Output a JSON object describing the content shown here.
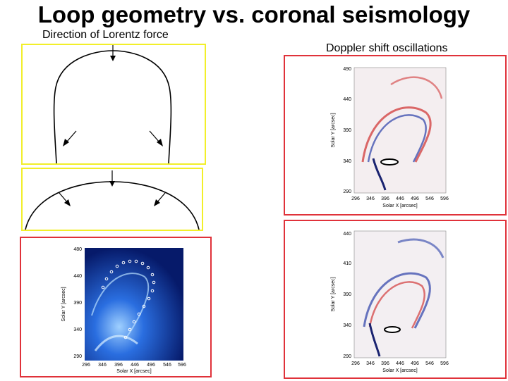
{
  "title": "Loop geometry vs. coronal seismology",
  "left_label": "Direction of Lorentz force",
  "right_label": "Doppler shift oscillations",
  "colors": {
    "yellow_frame": "#f2ef2a",
    "red_frame": "#e0323a",
    "doppler_red": "#d23a3a",
    "doppler_blue": "#2a3fa8",
    "euv_blue": "#1c5fd8"
  },
  "panel_euv": {
    "xlabel": "Solar X [arcsec]",
    "ylabel": "Solar Y [arcsec]",
    "xticks": [
      "296",
      "346",
      "396",
      "446",
      "496",
      "546",
      "596"
    ],
    "yticks": [
      "480",
      "440",
      "390",
      "340",
      "290"
    ]
  },
  "panel_doppler_top": {
    "xlabel": "Solar X [arcsec]",
    "ylabel": "Solar Y [arcsec]",
    "xticks": [
      "296",
      "346",
      "396",
      "446",
      "496",
      "546",
      "596"
    ],
    "yticks": [
      "490",
      "440",
      "390",
      "340",
      "290"
    ]
  },
  "panel_doppler_bottom": {
    "xlabel": "Solar X [arcsec]",
    "ylabel": "Solar Y [arcsec]",
    "xticks": [
      "296",
      "346",
      "396",
      "446",
      "496",
      "546",
      "596"
    ],
    "yticks": [
      "440",
      "410",
      "390",
      "340",
      "290"
    ]
  }
}
